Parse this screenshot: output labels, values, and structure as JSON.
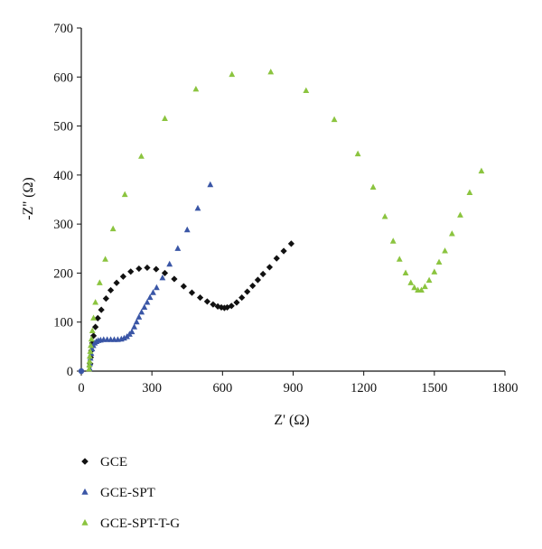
{
  "chart_data": {
    "type": "scatter",
    "xlabel": "Z' (Ω)",
    "ylabel": "-Z'' (Ω)",
    "xlim": [
      0,
      1800
    ],
    "ylim": [
      0,
      700
    ],
    "xticks": [
      0,
      300,
      600,
      900,
      1200,
      1500,
      1800
    ],
    "yticks": [
      0,
      100,
      200,
      300,
      400,
      500,
      600,
      700
    ],
    "grid": false,
    "legend_position": "bottom-left",
    "series": [
      {
        "name": "GCE",
        "marker": "diamond",
        "color": "#111111",
        "points": [
          [
            38,
            15
          ],
          [
            40,
            28
          ],
          [
            43,
            42
          ],
          [
            47,
            57
          ],
          [
            52,
            72
          ],
          [
            60,
            90
          ],
          [
            70,
            108
          ],
          [
            85,
            125
          ],
          [
            105,
            148
          ],
          [
            125,
            165
          ],
          [
            150,
            180
          ],
          [
            178,
            193
          ],
          [
            210,
            203
          ],
          [
            245,
            209
          ],
          [
            280,
            211
          ],
          [
            318,
            208
          ],
          [
            355,
            200
          ],
          [
            395,
            188
          ],
          [
            435,
            173
          ],
          [
            470,
            160
          ],
          [
            505,
            150
          ],
          [
            535,
            142
          ],
          [
            560,
            136
          ],
          [
            580,
            132
          ],
          [
            595,
            130
          ],
          [
            608,
            129
          ],
          [
            620,
            130
          ],
          [
            638,
            133
          ],
          [
            660,
            140
          ],
          [
            682,
            150
          ],
          [
            705,
            162
          ],
          [
            728,
            174
          ],
          [
            750,
            186
          ],
          [
            772,
            198
          ],
          [
            800,
            212
          ],
          [
            830,
            230
          ],
          [
            860,
            245
          ],
          [
            892,
            260
          ]
        ]
      },
      {
        "name": "GCE-SPT",
        "marker": "triangle",
        "color": "#3a56a6",
        "points": [
          [
            36,
            5
          ],
          [
            37,
            15
          ],
          [
            39,
            26
          ],
          [
            42,
            36
          ],
          [
            46,
            45
          ],
          [
            51,
            52
          ],
          [
            57,
            57
          ],
          [
            64,
            60
          ],
          [
            72,
            62
          ],
          [
            82,
            63
          ],
          [
            95,
            64
          ],
          [
            110,
            64
          ],
          [
            125,
            64
          ],
          [
            140,
            64
          ],
          [
            155,
            64
          ],
          [
            170,
            65
          ],
          [
            182,
            67
          ],
          [
            194,
            70
          ],
          [
            205,
            75
          ],
          [
            215,
            80
          ],
          [
            225,
            90
          ],
          [
            235,
            100
          ],
          [
            245,
            110
          ],
          [
            256,
            120
          ],
          [
            268,
            130
          ],
          [
            280,
            140
          ],
          [
            292,
            150
          ],
          [
            305,
            160
          ],
          [
            320,
            170
          ],
          [
            345,
            190
          ],
          [
            375,
            218
          ],
          [
            410,
            250
          ],
          [
            450,
            288
          ],
          [
            495,
            332
          ],
          [
            548,
            380
          ]
        ]
      },
      {
        "name": "GCE-SPT-T-G",
        "marker": "triangle",
        "color": "#8bc43f",
        "points": [
          [
            33,
            4
          ],
          [
            34,
            12
          ],
          [
            35,
            20
          ],
          [
            36,
            30
          ],
          [
            38,
            40
          ],
          [
            40,
            52
          ],
          [
            43,
            65
          ],
          [
            47,
            82
          ],
          [
            52,
            108
          ],
          [
            60,
            140
          ],
          [
            78,
            180
          ],
          [
            102,
            228
          ],
          [
            135,
            290
          ],
          [
            185,
            360
          ],
          [
            255,
            438
          ],
          [
            355,
            515
          ],
          [
            487,
            575
          ],
          [
            640,
            605
          ],
          [
            805,
            610
          ],
          [
            955,
            572
          ],
          [
            1075,
            513
          ],
          [
            1175,
            443
          ],
          [
            1240,
            375
          ],
          [
            1290,
            315
          ],
          [
            1325,
            265
          ],
          [
            1352,
            228
          ],
          [
            1378,
            200
          ],
          [
            1400,
            180
          ],
          [
            1415,
            170
          ],
          [
            1430,
            165
          ],
          [
            1445,
            165
          ],
          [
            1460,
            172
          ],
          [
            1478,
            185
          ],
          [
            1500,
            202
          ],
          [
            1520,
            222
          ],
          [
            1545,
            245
          ],
          [
            1575,
            280
          ],
          [
            1610,
            318
          ],
          [
            1650,
            364
          ],
          [
            1700,
            408
          ]
        ]
      }
    ],
    "extra_points": [
      {
        "name": "origin-marker",
        "marker": "circle",
        "color": "#3a56a6",
        "x": 0,
        "y": 0
      }
    ]
  }
}
